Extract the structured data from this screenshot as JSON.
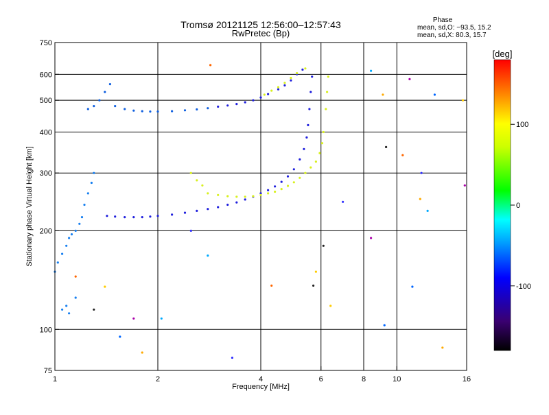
{
  "chart_data": {
    "type": "scatter",
    "title": "Tromsø 20121125 12:56:00–12:57:43",
    "subtitle": "RwPretec (Bp)",
    "xlabel": "Frequency [MHz]",
    "ylabel": "Stationary phase Virtual Height [km]",
    "x_scale": "log",
    "y_scale": "log",
    "xlim": [
      1,
      16
    ],
    "ylim": [
      75,
      750
    ],
    "x_ticks": [
      1,
      2,
      4,
      6,
      8,
      10,
      16
    ],
    "x_gridlines": [
      2,
      4,
      6,
      8,
      10
    ],
    "y_ticks": [
      75,
      100,
      200,
      300,
      400,
      500,
      600,
      750
    ],
    "y_gridlines": [
      100,
      200,
      300,
      400,
      500,
      600
    ],
    "grid": true,
    "stats": {
      "heading": "Phase",
      "lines": [
        "mean, sd,O: −93.5, 15.2",
        "mean, sd,X:  80.3, 15.7"
      ]
    },
    "colorbar": {
      "label": "[deg]",
      "ticks": [
        100,
        0,
        -100
      ],
      "range": [
        -180,
        180
      ]
    },
    "series": [
      {
        "mode": "O",
        "points": [
          [
            1.42,
            222
          ],
          [
            1.5,
            221
          ],
          [
            1.6,
            220
          ],
          [
            1.7,
            220
          ],
          [
            1.8,
            220
          ],
          [
            1.9,
            221
          ],
          [
            2.0,
            222
          ],
          [
            2.2,
            224
          ],
          [
            2.4,
            227
          ],
          [
            2.6,
            230
          ],
          [
            2.8,
            233
          ],
          [
            3.0,
            236
          ],
          [
            3.2,
            240
          ],
          [
            3.4,
            244
          ],
          [
            3.6,
            249
          ],
          [
            3.8,
            254
          ],
          [
            4.0,
            260
          ],
          [
            4.2,
            266
          ],
          [
            4.4,
            273
          ],
          [
            4.6,
            282
          ],
          [
            4.8,
            293
          ],
          [
            5.0,
            308
          ],
          [
            5.2,
            330
          ],
          [
            5.35,
            355
          ],
          [
            5.45,
            385
          ],
          [
            5.5,
            420
          ],
          [
            5.55,
            470
          ],
          [
            5.6,
            530
          ],
          [
            5.65,
            590
          ],
          [
            3.0,
            478
          ],
          [
            3.2,
            482
          ],
          [
            3.4,
            487
          ],
          [
            3.6,
            493
          ],
          [
            3.8,
            500
          ],
          [
            4.0,
            510
          ],
          [
            4.2,
            522
          ],
          [
            4.5,
            540
          ],
          [
            4.7,
            555
          ],
          [
            4.9,
            575
          ],
          [
            5.1,
            600
          ],
          [
            5.3,
            620
          ]
        ]
      },
      {
        "mode": "X",
        "points": [
          [
            2.8,
            260
          ],
          [
            3.0,
            257
          ],
          [
            3.2,
            255
          ],
          [
            3.4,
            254
          ],
          [
            3.6,
            254
          ],
          [
            3.8,
            255
          ],
          [
            4.0,
            257
          ],
          [
            4.2,
            260
          ],
          [
            4.4,
            263
          ],
          [
            4.6,
            268
          ],
          [
            4.8,
            274
          ],
          [
            5.0,
            281
          ],
          [
            5.2,
            290
          ],
          [
            5.4,
            300
          ],
          [
            5.6,
            312
          ],
          [
            5.8,
            325
          ],
          [
            5.95,
            345
          ],
          [
            6.05,
            370
          ],
          [
            6.1,
            400
          ],
          [
            4.1,
            520
          ],
          [
            4.3,
            535
          ],
          [
            4.5,
            548
          ],
          [
            4.7,
            565
          ],
          [
            4.9,
            585
          ],
          [
            5.1,
            605
          ],
          [
            5.4,
            625
          ],
          [
            6.2,
            470
          ],
          [
            6.25,
            530
          ],
          [
            6.3,
            590
          ],
          [
            2.5,
            300
          ],
          [
            2.6,
            285
          ],
          [
            2.7,
            275
          ]
        ]
      },
      {
        "mode": "F1",
        "points": [
          [
            1.25,
            470
          ],
          [
            1.3,
            480
          ],
          [
            1.35,
            500
          ],
          [
            1.4,
            530
          ],
          [
            1.45,
            560
          ],
          [
            1.5,
            480
          ],
          [
            1.6,
            470
          ],
          [
            1.7,
            465
          ],
          [
            1.8,
            463
          ],
          [
            1.9,
            462
          ],
          [
            2.0,
            462
          ],
          [
            2.2,
            463
          ],
          [
            2.4,
            466
          ],
          [
            2.6,
            469
          ],
          [
            2.8,
            473
          ]
        ]
      },
      {
        "mode": "E",
        "points": [
          [
            1.0,
            150
          ],
          [
            1.02,
            160
          ],
          [
            1.05,
            170
          ],
          [
            1.08,
            180
          ],
          [
            1.1,
            190
          ],
          [
            1.12,
            195
          ],
          [
            1.15,
            200
          ],
          [
            1.18,
            210
          ],
          [
            1.2,
            220
          ],
          [
            1.22,
            240
          ],
          [
            1.25,
            260
          ],
          [
            1.28,
            280
          ],
          [
            1.3,
            300
          ],
          [
            1.05,
            115
          ],
          [
            1.08,
            118
          ],
          [
            1.1,
            112
          ],
          [
            1.15,
            125
          ]
        ]
      },
      {
        "mode": "scatter",
        "points": [
          [
            2.85,
            640
          ],
          [
            6.95,
            245
          ],
          [
            8.4,
            615
          ],
          [
            9.1,
            520
          ],
          [
            10.9,
            580
          ],
          [
            12.9,
            520
          ],
          [
            15.6,
            500
          ],
          [
            9.3,
            360
          ],
          [
            10.4,
            340
          ],
          [
            11.8,
            300
          ],
          [
            12.3,
            230
          ],
          [
            11.7,
            250
          ],
          [
            8.4,
            190
          ],
          [
            9.2,
            103
          ],
          [
            6.4,
            118
          ],
          [
            5.7,
            136
          ],
          [
            4.3,
            136
          ],
          [
            3.3,
            82
          ],
          [
            2.05,
            108
          ],
          [
            1.8,
            85
          ],
          [
            1.7,
            108
          ],
          [
            1.55,
            95
          ],
          [
            1.4,
            135
          ],
          [
            1.3,
            115
          ],
          [
            1.15,
            145
          ],
          [
            2.5,
            200
          ],
          [
            2.8,
            168
          ],
          [
            13.6,
            88
          ],
          [
            15.8,
            275
          ],
          [
            11.1,
            135
          ],
          [
            5.8,
            150
          ],
          [
            6.1,
            180
          ]
        ]
      }
    ]
  }
}
